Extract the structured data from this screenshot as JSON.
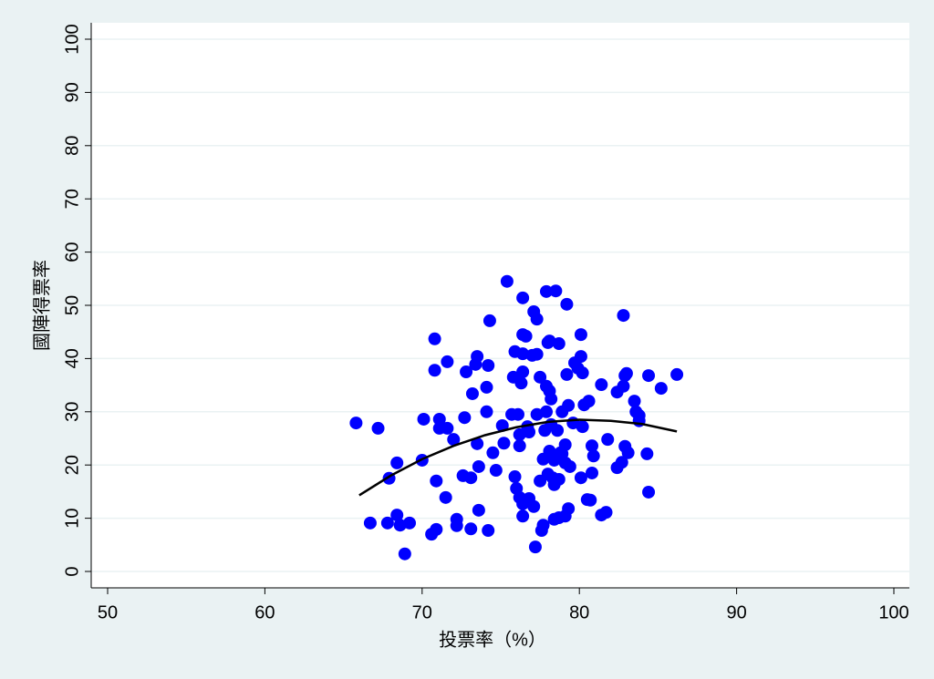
{
  "chart_data": {
    "type": "scatter",
    "x_label": "投票率（%）",
    "y_label": "國陣得票率",
    "xlim": [
      50,
      100
    ],
    "xticks": [
      50,
      60,
      70,
      80,
      90,
      100
    ],
    "ylim": [
      0,
      100
    ],
    "yticks": [
      0,
      10,
      20,
      30,
      40,
      50,
      60,
      70,
      80,
      90,
      100
    ],
    "grid": true,
    "series": [
      {
        "type": "scatter",
        "color": "#0000ff",
        "x": [
          65.8,
          67.2,
          66.7,
          67.8,
          67.9,
          68.4,
          68.4,
          68.6,
          69.2,
          68.9,
          70.0,
          70.1,
          70.8,
          70.8,
          70.9,
          70.6,
          70.9,
          71.1,
          71.1,
          71.6,
          71.6,
          71.5,
          72.0,
          72.2,
          72.2,
          72.7,
          72.8,
          72.6,
          73.1,
          73.2,
          73.1,
          73.4,
          73.5,
          73.5,
          73.6,
          73.6,
          74.1,
          74.2,
          74.3,
          74.2,
          74.5,
          74.7,
          74.1,
          75.1,
          75.2,
          75.4,
          75.7,
          75.8,
          75.9,
          75.9,
          76.0,
          76.1,
          76.2,
          76.2,
          76.2,
          76.4,
          76.3,
          76.4,
          76.4,
          76.4,
          76.6,
          76.4,
          76.4,
          76.7,
          76.8,
          76.8,
          77.0,
          77.1,
          77.3,
          77.3,
          77.3,
          77.1,
          77.2,
          77.5,
          77.5,
          77.6,
          77.7,
          77.7,
          77.8,
          77.9,
          77.9,
          77.9,
          78.0,
          78.0,
          78.1,
          78.1,
          78.1,
          78.2,
          78.2,
          78.3,
          78.4,
          78.4,
          78.4,
          78.5,
          78.6,
          78.7,
          78.7,
          78.7,
          78.8,
          78.9,
          78.9,
          79.1,
          79.1,
          79.2,
          79.2,
          79.1,
          79.3,
          79.3,
          79.4,
          79.6,
          79.7,
          79.9,
          80.1,
          80.1,
          80.2,
          80.1,
          80.2,
          80.3,
          80.5,
          80.6,
          80.7,
          80.8,
          80.8,
          80.9,
          81.4,
          81.4,
          81.7,
          81.8,
          82.4,
          82.4,
          82.7,
          82.8,
          82.9,
          82.8,
          83.0,
          82.9,
          83.1,
          83.5,
          83.6,
          83.8,
          83.8,
          84.4,
          84.3,
          84.4,
          85.2,
          86.2
        ],
        "values": [
          27.9,
          26.9,
          9.1,
          9.1,
          17.5,
          20.4,
          10.6,
          8.7,
          9.1,
          3.3,
          20.9,
          28.6,
          43.7,
          37.8,
          17.0,
          7.0,
          7.9,
          28.6,
          26.9,
          26.9,
          39.4,
          13.9,
          24.8,
          9.8,
          8.6,
          28.9,
          37.5,
          18.0,
          17.6,
          33.4,
          8.0,
          38.9,
          40.4,
          24.0,
          19.7,
          11.5,
          34.6,
          38.7,
          47.1,
          7.7,
          22.3,
          19.0,
          30.0,
          27.4,
          24.1,
          54.5,
          29.5,
          36.5,
          41.3,
          17.8,
          15.6,
          29.5,
          23.6,
          13.9,
          25.7,
          40.9,
          35.4,
          37.5,
          51.4,
          44.5,
          44.2,
          10.4,
          12.7,
          27.2,
          13.7,
          26.2,
          40.6,
          48.8,
          47.4,
          29.5,
          40.8,
          12.2,
          4.6,
          17.0,
          36.5,
          7.7,
          8.7,
          21.1,
          26.5,
          30.0,
          52.6,
          34.8,
          43.0,
          18.3,
          22.6,
          43.3,
          33.9,
          32.4,
          27.6,
          17.6,
          9.8,
          16.3,
          20.9,
          52.7,
          26.5,
          42.8,
          17.3,
          10.1,
          22.3,
          30.0,
          22.1,
          23.8,
          10.4,
          50.2,
          37.0,
          20.4,
          31.2,
          11.8,
          19.7,
          27.9,
          39.2,
          38.2,
          44.5,
          40.4,
          37.3,
          17.6,
          27.2,
          31.3,
          13.5,
          32.0,
          13.4,
          23.6,
          18.5,
          21.7,
          35.1,
          10.6,
          11.1,
          24.8,
          19.5,
          33.7,
          20.5,
          34.8,
          36.8,
          48.1,
          37.2,
          23.5,
          22.3,
          32.0,
          30.0,
          28.3,
          29.3,
          36.8,
          22.1,
          14.9,
          34.4,
          37.0
        ]
      },
      {
        "type": "line",
        "color": "#000000",
        "x": [
          66,
          68,
          70,
          72,
          74,
          76,
          78,
          80,
          82,
          84,
          86.2
        ],
        "values": [
          14.3,
          18.0,
          21.1,
          23.6,
          25.6,
          27.1,
          28.1,
          28.5,
          28.3,
          27.7,
          26.3
        ]
      }
    ]
  }
}
